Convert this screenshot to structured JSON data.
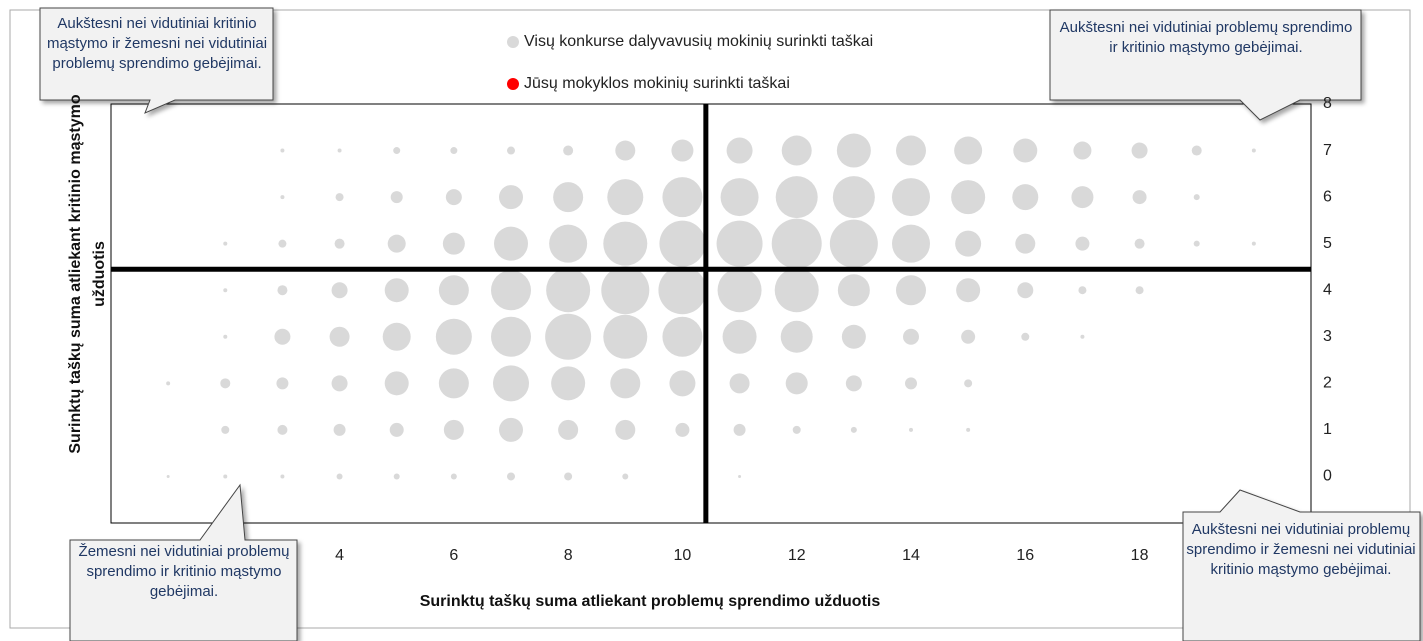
{
  "chart_data": {
    "type": "bubble",
    "xlabel": "Surinktų taškų suma atliekant problemų sprendimo užduotis",
    "ylabel": "Surinktų taškų suma atliekant kritinio mąstymo užduotis",
    "xlim": [
      0,
      21
    ],
    "xticks": [
      4,
      6,
      8,
      10,
      12,
      14,
      16,
      18
    ],
    "ylim": [
      -1,
      8
    ],
    "yticks": [
      0,
      1,
      2,
      3,
      4,
      5,
      6,
      7,
      8
    ],
    "reference_lines": {
      "x": 10.41,
      "y": 4.45
    },
    "annotations": [
      "Aukštesni nei vidutiniai kritinio mąstymo ir žemesni nei vidutiniai problemų sprendimo gebėjimai.",
      "Aukštesni nei vidutiniai problemų sprendimo ir kritinio mąstymo gebėjimai.",
      "Žemesni nei vidutiniai problemų sprendimo ir kritinio mąstymo gebėjimai.",
      "Aukštesni nei vidutiniai problemų sprendimo ir žemesni nei vidutiniai kritinio mąstymo gebėjimai."
    ],
    "series": [
      {
        "name": "Visų konkurse dalyvavusių mokinių surinkti taškai",
        "color": "#d9d9d9",
        "x": [
          3,
          4,
          5,
          6,
          7,
          8,
          9,
          10,
          11,
          12,
          13,
          14,
          15,
          16,
          17,
          18,
          19,
          20,
          3,
          4,
          5,
          6,
          7,
          8,
          9,
          10,
          11,
          12,
          13,
          14,
          15,
          16,
          17,
          18,
          19,
          2,
          3,
          4,
          5,
          6,
          7,
          8,
          9,
          10,
          11,
          12,
          13,
          14,
          15,
          16,
          17,
          18,
          19,
          20,
          2,
          3,
          4,
          5,
          6,
          7,
          8,
          9,
          10,
          11,
          12,
          13,
          14,
          15,
          16,
          17,
          18,
          2,
          3,
          4,
          5,
          6,
          7,
          8,
          9,
          10,
          11,
          12,
          13,
          14,
          15,
          16,
          17,
          1,
          2,
          3,
          4,
          5,
          6,
          7,
          8,
          9,
          10,
          11,
          12,
          13,
          14,
          15,
          2,
          3,
          4,
          5,
          6,
          7,
          8,
          9,
          10,
          11,
          12,
          13,
          14,
          15,
          1,
          2,
          3,
          4,
          5,
          6,
          7,
          8,
          9,
          11
        ],
        "y": [
          7,
          7,
          7,
          7,
          7,
          7,
          7,
          7,
          7,
          7,
          7,
          7,
          7,
          7,
          7,
          7,
          7,
          7,
          6,
          6,
          6,
          6,
          6,
          6,
          6,
          6,
          6,
          6,
          6,
          6,
          6,
          6,
          6,
          6,
          6,
          5,
          5,
          5,
          5,
          5,
          5,
          5,
          5,
          5,
          5,
          5,
          5,
          5,
          5,
          5,
          5,
          5,
          5,
          5,
          4,
          4,
          4,
          4,
          4,
          4,
          4,
          4,
          4,
          4,
          4,
          4,
          4,
          4,
          4,
          4,
          4,
          3,
          3,
          3,
          3,
          3,
          3,
          3,
          3,
          3,
          3,
          3,
          3,
          3,
          3,
          3,
          3,
          2,
          2,
          2,
          2,
          2,
          2,
          2,
          2,
          2,
          2,
          2,
          2,
          2,
          2,
          2,
          1,
          1,
          1,
          1,
          1,
          1,
          1,
          1,
          1,
          1,
          1,
          1,
          1,
          1,
          0,
          0,
          0,
          0,
          0,
          0,
          0,
          0,
          0,
          0
        ],
        "sizes": [
          2,
          2,
          3.5,
          3.5,
          4,
          5,
          10,
          11,
          13,
          15,
          17,
          15,
          14,
          12,
          9,
          8,
          5,
          2,
          2,
          4,
          6,
          8,
          12,
          15,
          18,
          20,
          19,
          21,
          21,
          19,
          17,
          13,
          11,
          7,
          3,
          2,
          4,
          5,
          9,
          11,
          17,
          19,
          22,
          23,
          23,
          25,
          24,
          19,
          13,
          10,
          7,
          5,
          3,
          2,
          2,
          5,
          8,
          12,
          15,
          20,
          22,
          24,
          24,
          22,
          22,
          16,
          15,
          12,
          8,
          4,
          4,
          2,
          8,
          10,
          14,
          18,
          20,
          23,
          22,
          20,
          17,
          16,
          12,
          8,
          7,
          4,
          2,
          2,
          5,
          6,
          8,
          12,
          15,
          18,
          17,
          15,
          13,
          10,
          11,
          8,
          6,
          4,
          4,
          5,
          6,
          7,
          10,
          12,
          10,
          10,
          7,
          6,
          4,
          3,
          2,
          2,
          1.5,
          2,
          2,
          3,
          3,
          3,
          4,
          4,
          3,
          1.5
        ]
      },
      {
        "name": "Jūsų mokyklos mokinių surinkti taškai",
        "color": "#ff0000",
        "x": [],
        "y": [],
        "sizes": []
      }
    ]
  }
}
